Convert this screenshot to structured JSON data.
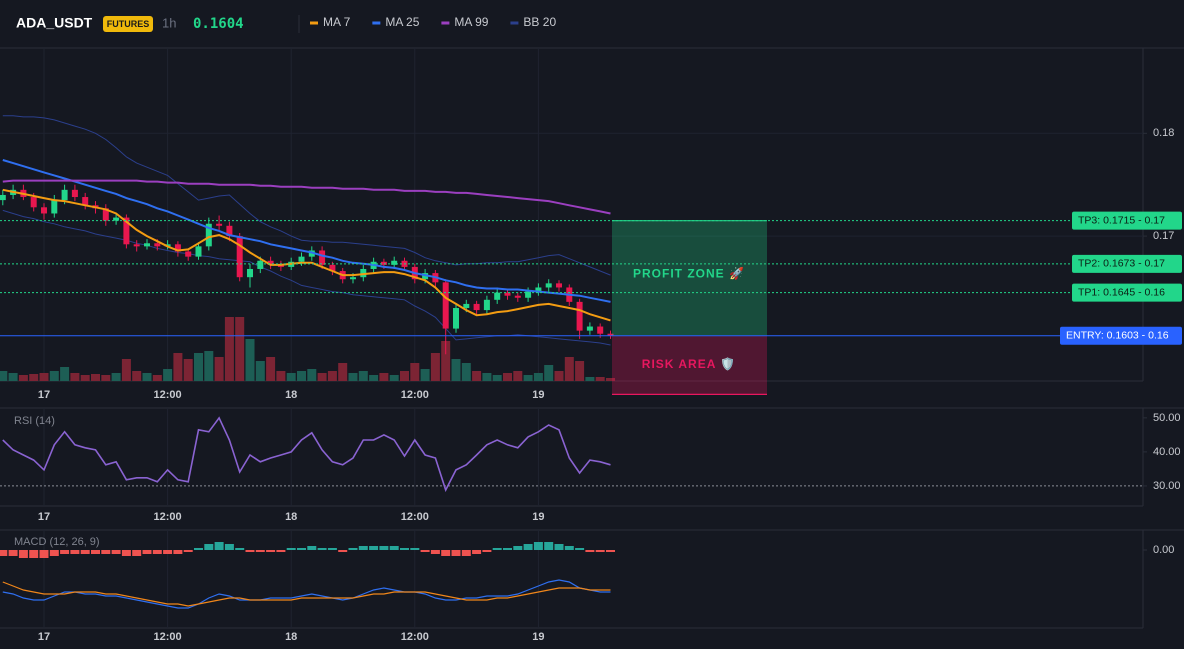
{
  "header": {
    "symbol": "ADA_USDT",
    "badge": "FUTURES",
    "interval": "1h",
    "price": "0.1604"
  },
  "chart_data": [
    {
      "type": "candlestick",
      "categories": [
        null,
        null,
        null,
        null,
        "17",
        null,
        null,
        null,
        null,
        null,
        null,
        null,
        null,
        null,
        null,
        null,
        "12:00",
        null,
        null,
        null,
        null,
        null,
        null,
        null,
        null,
        null,
        null,
        null,
        "18",
        null,
        null,
        null,
        null,
        null,
        null,
        null,
        null,
        null,
        null,
        null,
        "12:00",
        null,
        null,
        null,
        null,
        null,
        null,
        null,
        null,
        null,
        null,
        null,
        "19",
        null,
        null,
        null,
        null,
        null,
        null,
        null
      ],
      "open": [
        0.1735,
        0.174,
        0.1745,
        0.1738,
        0.1728,
        0.1722,
        0.1735,
        0.1745,
        0.1738,
        0.173,
        0.1727,
        0.1715,
        0.1718,
        0.1692,
        0.169,
        0.1693,
        0.169,
        0.1692,
        0.1685,
        0.168,
        0.169,
        0.1712,
        0.171,
        0.17,
        0.166,
        0.1668,
        0.1676,
        0.1672,
        0.167,
        0.1675,
        0.168,
        0.1686,
        0.1672,
        0.1666,
        0.1658,
        0.166,
        0.1668,
        0.1675,
        0.1672,
        0.1676,
        0.167,
        0.1658,
        0.1664,
        0.1655,
        0.161,
        0.163,
        0.1634,
        0.1628,
        0.1638,
        0.1645,
        0.1642,
        0.164,
        0.1646,
        0.165,
        0.1654,
        0.165,
        0.1636,
        0.1608,
        0.1612,
        0.1605
      ],
      "high": [
        0.1745,
        0.175,
        0.175,
        0.1742,
        0.1732,
        0.174,
        0.175,
        0.175,
        0.1742,
        0.1734,
        0.1731,
        0.1721,
        0.1721,
        0.1696,
        0.1697,
        0.1697,
        0.1696,
        0.1695,
        0.1688,
        0.1694,
        0.1718,
        0.172,
        0.1714,
        0.1703,
        0.1673,
        0.168,
        0.168,
        0.1676,
        0.1679,
        0.1684,
        0.169,
        0.169,
        0.1675,
        0.1669,
        0.1664,
        0.1672,
        0.1679,
        0.1678,
        0.168,
        0.1679,
        0.1673,
        0.1668,
        0.1667,
        0.1658,
        0.1634,
        0.1638,
        0.1637,
        0.1642,
        0.165,
        0.1648,
        0.1645,
        0.165,
        0.1654,
        0.1658,
        0.1657,
        0.1653,
        0.1639,
        0.1616,
        0.1615,
        0.1608
      ],
      "low": [
        0.173,
        0.1736,
        0.1735,
        0.1724,
        0.1716,
        0.1718,
        0.1731,
        0.1734,
        0.1726,
        0.1722,
        0.171,
        0.1711,
        0.1688,
        0.1685,
        0.1687,
        0.1686,
        0.1687,
        0.168,
        0.1676,
        0.1677,
        0.1686,
        0.1705,
        0.1695,
        0.1656,
        0.165,
        0.1664,
        0.1668,
        0.1666,
        0.1667,
        0.1671,
        0.1676,
        0.1668,
        0.1662,
        0.1654,
        0.1654,
        0.1656,
        0.1664,
        0.1668,
        0.1668,
        0.1666,
        0.1654,
        0.1654,
        0.165,
        0.1585,
        0.1606,
        0.1626,
        0.1624,
        0.1624,
        0.1634,
        0.1638,
        0.1636,
        0.1636,
        0.1642,
        0.1646,
        0.1646,
        0.1632,
        0.16,
        0.1604,
        0.1601,
        0.16
      ],
      "close": [
        0.174,
        0.1745,
        0.1738,
        0.1728,
        0.1722,
        0.1735,
        0.1745,
        0.1738,
        0.173,
        0.1727,
        0.1715,
        0.1718,
        0.1692,
        0.169,
        0.1693,
        0.169,
        0.1692,
        0.1685,
        0.168,
        0.169,
        0.1712,
        0.171,
        0.17,
        0.166,
        0.1668,
        0.1676,
        0.1672,
        0.167,
        0.1675,
        0.168,
        0.1686,
        0.1672,
        0.1666,
        0.1658,
        0.166,
        0.1668,
        0.1675,
        0.1672,
        0.1676,
        0.167,
        0.1658,
        0.1664,
        0.1655,
        0.161,
        0.163,
        0.1634,
        0.1628,
        0.1638,
        0.1645,
        0.1642,
        0.164,
        0.1646,
        0.165,
        0.1654,
        0.165,
        0.1636,
        0.1608,
        0.1612,
        0.1605,
        0.1603
      ],
      "volume": [
        10,
        8,
        6,
        7,
        8,
        10,
        14,
        8,
        6,
        7,
        6,
        8,
        22,
        10,
        8,
        6,
        12,
        28,
        22,
        28,
        30,
        24,
        64,
        64,
        42,
        20,
        24,
        10,
        8,
        10,
        12,
        8,
        10,
        18,
        8,
        10,
        6,
        8,
        6,
        10,
        18,
        12,
        28,
        40,
        22,
        18,
        10,
        8,
        6,
        8,
        10,
        6,
        8,
        16,
        10,
        24,
        20,
        4,
        4,
        3
      ],
      "up_color": "#22d68a",
      "down_color": "#e8174f",
      "volume_up_color": "#1d5e55",
      "volume_down_color": "#7c2434",
      "series": [
        {
          "name": "MA 7",
          "color": "#f39c12",
          "values": [
            0.1745,
            0.1743,
            0.1741,
            0.1739,
            0.1737,
            0.1735,
            0.1734,
            0.1732,
            0.173,
            0.1728,
            0.1726,
            0.1722,
            0.1714,
            0.1706,
            0.17,
            0.1695,
            0.169,
            0.1686,
            0.1687,
            0.1693,
            0.1699,
            0.1701,
            0.1697,
            0.1691,
            0.1684,
            0.1678,
            0.1672,
            0.1672,
            0.1673,
            0.1674,
            0.1674,
            0.167,
            0.1666,
            0.1662,
            0.1662,
            0.1663,
            0.1664,
            0.1665,
            0.1665,
            0.1663,
            0.166,
            0.1657,
            0.165,
            0.164,
            0.1634,
            0.1628,
            0.1623,
            0.1624,
            0.1626,
            0.1627,
            0.1629,
            0.1631,
            0.1633,
            0.1634,
            0.1632,
            0.163,
            0.1628,
            0.1624,
            0.1621,
            0.1618
          ]
        },
        {
          "name": "MA 25",
          "color": "#2f6ff0",
          "values": [
            0.1774,
            0.1771,
            0.1768,
            0.1765,
            0.1762,
            0.1759,
            0.1756,
            0.1753,
            0.175,
            0.1747,
            0.1744,
            0.1741,
            0.1737,
            0.1734,
            0.1731,
            0.1727,
            0.1724,
            0.172,
            0.1716,
            0.1712,
            0.1708,
            0.1705,
            0.1701,
            0.1699,
            0.1697,
            0.1695,
            0.1692,
            0.169,
            0.1688,
            0.1686,
            0.1684,
            0.1681,
            0.1679,
            0.1676,
            0.1674,
            0.1673,
            0.1672,
            0.167,
            0.1669,
            0.1667,
            0.1664,
            0.1662,
            0.166,
            0.1657,
            0.1655,
            0.1652,
            0.165,
            0.1649,
            0.1649,
            0.1648,
            0.1648,
            0.1647,
            0.1646,
            0.1645,
            0.1644,
            0.1643,
            0.1642,
            0.164,
            0.1638,
            0.1636
          ]
        },
        {
          "name": "MA 99",
          "color": "#9b3fc0",
          "values": [
            0.1753,
            0.1754,
            0.1754,
            0.1754,
            0.1754,
            0.1754,
            0.1754,
            0.1754,
            0.1754,
            0.1754,
            0.1754,
            0.1754,
            0.1754,
            0.1754,
            0.1753,
            0.1753,
            0.1752,
            0.1752,
            0.1751,
            0.1751,
            0.1751,
            0.175,
            0.175,
            0.175,
            0.175,
            0.1749,
            0.1749,
            0.1748,
            0.1748,
            0.1748,
            0.1747,
            0.1747,
            0.1747,
            0.1746,
            0.1746,
            0.1746,
            0.1745,
            0.1745,
            0.1745,
            0.1744,
            0.1744,
            0.1744,
            0.1743,
            0.1743,
            0.1742,
            0.1742,
            0.1741,
            0.174,
            0.1739,
            0.1738,
            0.1737,
            0.1736,
            0.1735,
            0.1734,
            0.1732,
            0.173,
            0.1728,
            0.1726,
            0.1724,
            0.1722
          ]
        },
        {
          "name": "BB 20",
          "color": "#2b3f8c",
          "upper": [
            0.1817,
            0.1817,
            0.1816,
            0.1816,
            0.1815,
            0.1813,
            0.181,
            0.1807,
            0.1804,
            0.18,
            0.1794,
            0.1786,
            0.1777,
            0.1771,
            0.1767,
            0.1763,
            0.1759,
            0.1751,
            0.1743,
            0.1735,
            0.1737,
            0.1739,
            0.174,
            0.1731,
            0.1722,
            0.1714,
            0.1709,
            0.1705,
            0.17,
            0.1696,
            0.1695,
            0.1695,
            0.1694,
            0.1694,
            0.1693,
            0.1692,
            0.1691,
            0.169,
            0.1689,
            0.1688,
            0.1684,
            0.1679,
            0.1676,
            0.1674,
            0.1672,
            0.1673,
            0.1673,
            0.1674,
            0.1674,
            0.1675,
            0.1675,
            0.1677,
            0.1679,
            0.1681,
            0.1682,
            0.1678,
            0.1674,
            0.167,
            0.1666,
            0.1662
          ],
          "lower": [
            0.1725,
            0.1722,
            0.1719,
            0.1717,
            0.1714,
            0.1712,
            0.1709,
            0.1707,
            0.1705,
            0.1702,
            0.17,
            0.1698,
            0.1696,
            0.1693,
            0.1691,
            0.1688,
            0.1686,
            0.1684,
            0.1683,
            0.1681,
            0.168,
            0.1678,
            0.1677,
            0.1676,
            0.1675,
            0.167,
            0.1666,
            0.1661,
            0.1657,
            0.1652,
            0.165,
            0.1648,
            0.1646,
            0.1645,
            0.1643,
            0.1642,
            0.1641,
            0.164,
            0.1639,
            0.1638,
            0.1632,
            0.1627,
            0.1621,
            0.161,
            0.1599,
            0.16,
            0.1601,
            0.1602,
            0.1603,
            0.1603,
            0.1604,
            0.1603,
            0.1602,
            0.1601,
            0.16,
            0.1599,
            0.1598,
            0.1597,
            0.1596,
            0.1594
          ]
        }
      ],
      "ylim": [
        0.1559,
        0.1883
      ],
      "yticks": [
        0.17,
        0.18
      ],
      "grid": true,
      "levels": [
        {
          "value": 0.1715,
          "label": "TP3: 0.1715 - 0.17",
          "color": "#22d68a"
        },
        {
          "value": 0.1673,
          "label": "TP2: 0.1673 - 0.17",
          "color": "#22d68a"
        },
        {
          "value": 0.1645,
          "label": "TP1: 0.1645 - 0.16",
          "color": "#22d68a"
        },
        {
          "value": 0.1603,
          "label": "ENTRY: 0.1603 - 0.16",
          "color": "#2962ff"
        }
      ],
      "zones": [
        {
          "label": "PROFIT ZONE 🚀",
          "from": 0.1603,
          "to": 0.1715,
          "color": "#22d68a"
        },
        {
          "label": "RISK AREA 🛡️",
          "from": 0.1603,
          "to": 0.1546,
          "color": "#e8175f"
        }
      ]
    },
    {
      "type": "line",
      "title": "RSI (14)",
      "color": "#8a63d2",
      "values": [
        43.5,
        40.6,
        39.1,
        37.6,
        34.7,
        42.1,
        45.9,
        42.1,
        41.2,
        40.6,
        36.2,
        37.1,
        31.8,
        32.4,
        32.4,
        31.2,
        34.7,
        31.8,
        31.2,
        46.5,
        45.9,
        50.0,
        43.5,
        34.1,
        39.1,
        37.1,
        38.2,
        39.1,
        40.0,
        43.5,
        45.6,
        40.6,
        37.1,
        36.2,
        38.2,
        43.5,
        43.5,
        45.0,
        43.5,
        38.8,
        43.5,
        39.1,
        38.2,
        28.8,
        34.7,
        36.2,
        39.1,
        42.1,
        43.5,
        42.1,
        41.2,
        44.4,
        45.9,
        47.9,
        46.5,
        38.2,
        33.8,
        37.6,
        37.1,
        36.2
      ],
      "ylim": [
        24.1,
        52.9
      ],
      "yticks": [
        {
          "value": 50,
          "label": "50.00"
        },
        {
          "value": 40,
          "label": "40.00"
        },
        {
          "value": 30,
          "label": "30.00"
        }
      ],
      "hline": 30
    },
    {
      "type": "macd",
      "title": "MACD (12, 26, 9)",
      "up_color": "#26a69a",
      "down_color": "#ef5350",
      "histogram": [
        -0.0003,
        -0.0003,
        -0.0004,
        -0.0004,
        -0.0004,
        -0.0003,
        -0.0002,
        -0.0002,
        -0.0002,
        -0.0002,
        -0.0002,
        -0.0002,
        -0.0003,
        -0.0003,
        -0.0002,
        -0.0002,
        -0.0002,
        -0.0002,
        -0.0001,
        0.0001,
        0.0003,
        0.0004,
        0.0003,
        0.0001,
        -0.0001,
        -0.0001,
        -0.0001,
        -0.0001,
        0.0001,
        0.0001,
        0.0002,
        0.0001,
        0.0001,
        -0.0001,
        0.0001,
        0.0002,
        0.0002,
        0.0002,
        0.0002,
        0.0001,
        0.0001,
        -0.0001,
        -0.0002,
        -0.0003,
        -0.0003,
        -0.0003,
        -0.0002,
        -0.0001,
        0.0001,
        0.0001,
        0.0002,
        0.0003,
        0.0004,
        0.0004,
        0.0003,
        0.0002,
        0.0001,
        -0.0001,
        -0.0001,
        -0.0001
      ],
      "macd": {
        "color": "#2f6ff0",
        "values": [
          -0.0021,
          -0.0022,
          -0.0024,
          -0.0025,
          -0.0025,
          -0.0023,
          -0.0021,
          -0.0021,
          -0.0022,
          -0.0022,
          -0.0023,
          -0.0023,
          -0.0024,
          -0.0025,
          -0.0026,
          -0.0027,
          -0.0028,
          -0.0029,
          -0.0029,
          -0.0027,
          -0.0024,
          -0.0022,
          -0.0023,
          -0.0025,
          -0.0025,
          -0.0025,
          -0.0024,
          -0.0024,
          -0.0024,
          -0.0023,
          -0.0022,
          -0.0023,
          -0.0024,
          -0.0025,
          -0.0024,
          -0.0022,
          -0.002,
          -0.0019,
          -0.002,
          -0.0021,
          -0.0021,
          -0.0022,
          -0.0024,
          -0.0025,
          -0.0025,
          -0.0024,
          -0.0024,
          -0.0023,
          -0.0023,
          -0.0023,
          -0.0022,
          -0.002,
          -0.0018,
          -0.0016,
          -0.0015,
          -0.0016,
          -0.0019,
          -0.002,
          -0.0021,
          -0.0021
        ]
      },
      "signal": {
        "color": "#f0861a",
        "values": [
          -0.0016,
          -0.0018,
          -0.002,
          -0.0021,
          -0.0022,
          -0.0022,
          -0.0022,
          -0.0021,
          -0.0021,
          -0.0021,
          -0.0022,
          -0.0022,
          -0.0023,
          -0.0024,
          -0.0025,
          -0.0026,
          -0.0027,
          -0.0027,
          -0.0028,
          -0.0027,
          -0.0026,
          -0.0025,
          -0.0024,
          -0.0024,
          -0.0025,
          -0.0025,
          -0.0025,
          -0.0025,
          -0.0025,
          -0.0024,
          -0.0024,
          -0.0024,
          -0.0024,
          -0.0024,
          -0.0024,
          -0.0023,
          -0.0022,
          -0.0022,
          -0.0021,
          -0.0021,
          -0.0021,
          -0.0021,
          -0.0022,
          -0.0023,
          -0.0024,
          -0.0025,
          -0.0025,
          -0.0025,
          -0.0024,
          -0.0024,
          -0.0023,
          -0.0022,
          -0.0021,
          -0.002,
          -0.0019,
          -0.0019,
          -0.0019,
          -0.002,
          -0.002,
          -0.002
        ]
      },
      "ylim": [
        -0.0039,
        0.001
      ],
      "yticks": [
        {
          "value": 0,
          "label": "0.00"
        }
      ]
    }
  ]
}
